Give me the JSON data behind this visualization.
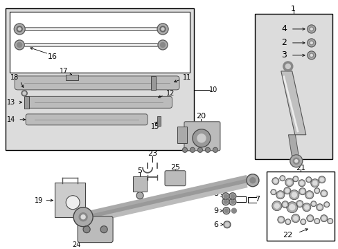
{
  "bg_color": "#ffffff",
  "shaded_bg": "#dcdcdc",
  "box_line": "#000000",
  "fig_width": 4.89,
  "fig_height": 3.6,
  "dpi": 100
}
